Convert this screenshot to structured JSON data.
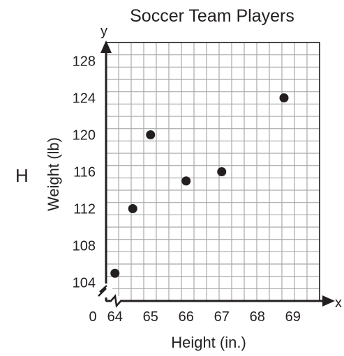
{
  "option_letter": "H",
  "chart_data": {
    "type": "scatter",
    "title": "Soccer Team Players",
    "xlabel": "Height (in.)",
    "ylabel": "Weight (lb)",
    "x_axis_letter": "x",
    "y_axis_letter": "y",
    "origin_label": "0",
    "xlim": [
      63.75,
      69.75
    ],
    "ylim": [
      102,
      130
    ],
    "x_ticks": [
      64,
      65,
      66,
      67,
      68,
      69
    ],
    "y_ticks": [
      104,
      108,
      112,
      116,
      120,
      124,
      128
    ],
    "axis_break": true,
    "grid": true,
    "points": [
      {
        "x": 64,
        "y": 105
      },
      {
        "x": 64.5,
        "y": 112
      },
      {
        "x": 65,
        "y": 120
      },
      {
        "x": 66,
        "y": 115
      },
      {
        "x": 67,
        "y": 116
      },
      {
        "x": 68.75,
        "y": 124
      }
    ],
    "colors": {
      "ink": "#231f20",
      "grid": "#a7a9ac"
    }
  }
}
